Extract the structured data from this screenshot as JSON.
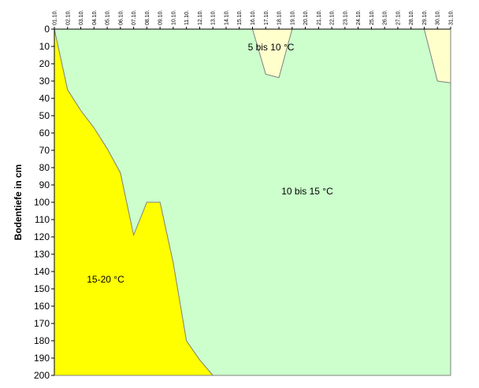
{
  "chart_data": {
    "type": "area",
    "title": "",
    "xlabel": "",
    "ylabel": "Bodentiefe in cm",
    "x_categories": [
      "01.10.",
      "02.10.",
      "03.10.",
      "04.10.",
      "05.10.",
      "06.10.",
      "07.10.",
      "08.10.",
      "09.10.",
      "10.10.",
      "11.10.",
      "12.10.",
      "13.10.",
      "14.10.",
      "15.10.",
      "16.10.",
      "17.10.",
      "18.10.",
      "19.10.",
      "20.10.",
      "21.10.",
      "22.10.",
      "23.10.",
      "24.10.",
      "25.10.",
      "26.10.",
      "27.10.",
      "28.10.",
      "29.10.",
      "30.10.",
      "31.10."
    ],
    "x_axis_position": "top",
    "y_ticks": [
      0,
      10,
      20,
      30,
      40,
      50,
      60,
      70,
      80,
      90,
      100,
      110,
      120,
      130,
      140,
      150,
      160,
      170,
      180,
      190,
      200
    ],
    "ylim": [
      0,
      200
    ],
    "y_inverted": true,
    "grid": false,
    "legend": "none",
    "regions": [
      {
        "label": "15-20 °C",
        "color": "#ffff00",
        "boundary": [
          {
            "day": 1,
            "depth": 0
          },
          {
            "day": 2,
            "depth": 35
          },
          {
            "day": 3,
            "depth": 47
          },
          {
            "day": 4,
            "depth": 57
          },
          {
            "day": 5,
            "depth": 69
          },
          {
            "day": 6,
            "depth": 83
          },
          {
            "day": 7,
            "depth": 119
          },
          {
            "day": 8,
            "depth": 100
          },
          {
            "day": 9,
            "depth": 100
          },
          {
            "day": 10,
            "depth": 135
          },
          {
            "day": 11,
            "depth": 180
          },
          {
            "day": 12,
            "depth": 191
          },
          {
            "day": 13,
            "depth": 200
          }
        ]
      },
      {
        "label": "10 bis 15 °C",
        "color": "#ccffcc"
      },
      {
        "label": "5 bis 10 °C",
        "color": "#ffffcc",
        "patches": [
          [
            {
              "day": 16,
              "depth": 0
            },
            {
              "day": 17,
              "depth": 26
            },
            {
              "day": 18,
              "depth": 28
            },
            {
              "day": 19,
              "depth": 0
            }
          ],
          [
            {
              "day": 29,
              "depth": 0
            },
            {
              "day": 30,
              "depth": 30
            },
            {
              "day": 31,
              "depth": 31
            },
            {
              "day": 31,
              "depth": 0
            }
          ]
        ]
      }
    ]
  }
}
